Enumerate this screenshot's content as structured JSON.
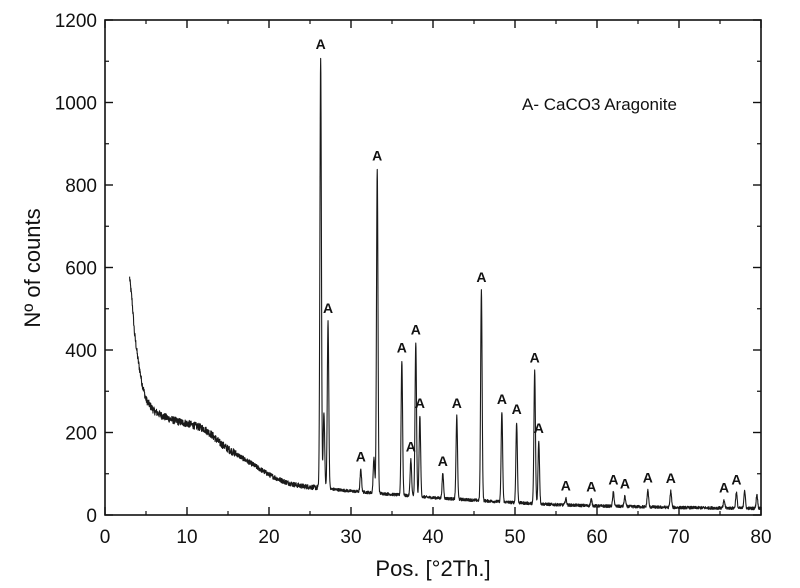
{
  "chart_data": {
    "type": "line",
    "xlabel": "Pos. [°2Th.]",
    "ylabel": "Nº of counts",
    "legend_text": "A- CaCO3 Aragonite",
    "legend_placement": "top-right",
    "grid": false,
    "xlim": [
      0,
      80
    ],
    "ylim": [
      0,
      1200
    ],
    "x_ticks": [
      0,
      10,
      20,
      30,
      40,
      50,
      60,
      70,
      80
    ],
    "y_ticks": [
      0,
      200,
      400,
      600,
      800,
      1000,
      1200
    ],
    "line_color": "#1a1a1a",
    "baseline": [
      [
        3.0,
        575
      ],
      [
        3.3,
        520
      ],
      [
        3.6,
        440
      ],
      [
        4.0,
        380
      ],
      [
        4.5,
        320
      ],
      [
        5.0,
        280
      ],
      [
        5.5,
        265
      ],
      [
        6.0,
        252
      ],
      [
        7.0,
        240
      ],
      [
        8.0,
        232
      ],
      [
        9.0,
        226
      ],
      [
        10.0,
        222
      ],
      [
        11.0,
        216
      ],
      [
        12.0,
        210
      ],
      [
        13.0,
        195
      ],
      [
        14.0,
        175
      ],
      [
        15.0,
        160
      ],
      [
        16.0,
        148
      ],
      [
        17.0,
        135
      ],
      [
        18.0,
        123
      ],
      [
        19.0,
        110
      ],
      [
        20.0,
        98
      ],
      [
        21.0,
        88
      ],
      [
        22.0,
        80
      ],
      [
        23.0,
        74
      ],
      [
        24.0,
        70
      ],
      [
        25.0,
        68
      ],
      [
        26.0,
        66
      ],
      [
        30.0,
        58
      ],
      [
        35.0,
        50
      ],
      [
        40.0,
        42
      ],
      [
        45.0,
        36
      ],
      [
        50.0,
        30
      ],
      [
        55.0,
        25
      ],
      [
        60.0,
        22
      ],
      [
        65.0,
        20
      ],
      [
        70.0,
        18
      ],
      [
        75.0,
        17
      ],
      [
        80.0,
        16
      ]
    ],
    "peaks": [
      {
        "x": 26.3,
        "y": 1110,
        "label": "A"
      },
      {
        "x": 26.7,
        "y": 250,
        "label": ""
      },
      {
        "x": 27.2,
        "y": 470,
        "label": "A"
      },
      {
        "x": 31.2,
        "y": 110,
        "label": "A"
      },
      {
        "x": 32.8,
        "y": 140,
        "label": ""
      },
      {
        "x": 33.2,
        "y": 840,
        "label": "A"
      },
      {
        "x": 36.2,
        "y": 375,
        "label": "A"
      },
      {
        "x": 37.3,
        "y": 135,
        "label": "A"
      },
      {
        "x": 37.9,
        "y": 418,
        "label": "A"
      },
      {
        "x": 38.4,
        "y": 240,
        "label": "A"
      },
      {
        "x": 41.2,
        "y": 100,
        "label": "A"
      },
      {
        "x": 42.9,
        "y": 240,
        "label": "A"
      },
      {
        "x": 45.9,
        "y": 545,
        "label": "A"
      },
      {
        "x": 48.4,
        "y": 250,
        "label": "A"
      },
      {
        "x": 50.2,
        "y": 225,
        "label": "A"
      },
      {
        "x": 52.4,
        "y": 350,
        "label": "A"
      },
      {
        "x": 52.9,
        "y": 180,
        "label": "A"
      },
      {
        "x": 56.2,
        "y": 40,
        "label": "A"
      },
      {
        "x": 59.3,
        "y": 38,
        "label": "A"
      },
      {
        "x": 62.0,
        "y": 55,
        "label": "A"
      },
      {
        "x": 63.4,
        "y": 45,
        "label": "A"
      },
      {
        "x": 66.2,
        "y": 60,
        "label": "A"
      },
      {
        "x": 69.0,
        "y": 58,
        "label": "A"
      },
      {
        "x": 75.5,
        "y": 35,
        "label": "A"
      },
      {
        "x": 77.0,
        "y": 55,
        "label": "A"
      },
      {
        "x": 78.0,
        "y": 60,
        "label": ""
      },
      {
        "x": 79.5,
        "y": 50,
        "label": ""
      }
    ]
  }
}
